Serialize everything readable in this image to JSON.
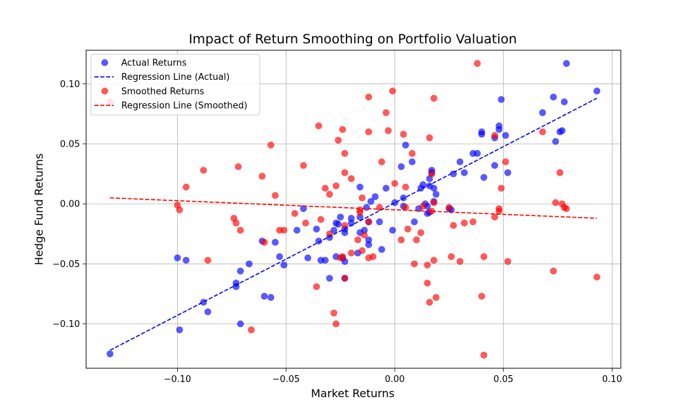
{
  "chart_data": {
    "type": "scatter",
    "title": "Impact of Return Smoothing on Portfolio Valuation",
    "xlabel": "Market Returns",
    "ylabel": "Hedge Fund Returns",
    "xlim": [
      -0.142,
      0.104
    ],
    "ylim": [
      -0.137,
      0.128
    ],
    "xticks": [
      "-0.10",
      "-0.05",
      "0.00",
      "0.05",
      "0.10"
    ],
    "yticks": [
      "-0.10",
      "-0.05",
      "0.00",
      "0.05",
      "0.10"
    ],
    "grid": true,
    "legend": {
      "position": "top-left",
      "entries": [
        "Actual Returns",
        "Regression Line (Actual)",
        "Smoothed Returns",
        "Regression Line (Smoothed)"
      ]
    },
    "colors": {
      "actual": "#0000ff",
      "smoothed": "#ff0000"
    },
    "series": [
      {
        "name": "Actual Returns",
        "kind": "scatter",
        "points": [
          [
            -0.131,
            -0.125
          ],
          [
            -0.099,
            -0.105
          ],
          [
            -0.1,
            -0.045
          ],
          [
            -0.096,
            -0.047
          ],
          [
            -0.088,
            -0.082
          ],
          [
            -0.086,
            -0.09
          ],
          [
            -0.073,
            -0.066
          ],
          [
            -0.073,
            -0.069
          ],
          [
            -0.071,
            -0.1
          ],
          [
            -0.071,
            -0.056
          ],
          [
            -0.067,
            -0.05
          ],
          [
            -0.061,
            -0.031
          ],
          [
            -0.06,
            -0.077
          ],
          [
            -0.057,
            -0.078
          ],
          [
            -0.055,
            -0.032
          ],
          [
            -0.053,
            -0.044
          ],
          [
            -0.051,
            -0.051
          ],
          [
            -0.045,
            -0.022
          ],
          [
            -0.042,
            -0.004
          ],
          [
            -0.04,
            -0.045
          ],
          [
            -0.036,
            -0.021
          ],
          [
            -0.035,
            -0.031
          ],
          [
            -0.034,
            -0.047
          ],
          [
            -0.032,
            -0.047
          ],
          [
            -0.03,
            -0.028
          ],
          [
            -0.03,
            -0.062
          ],
          [
            -0.028,
            -0.022
          ],
          [
            -0.027,
            -0.016
          ],
          [
            -0.027,
            -0.044
          ],
          [
            -0.026,
            -0.017
          ],
          [
            -0.025,
            -0.011
          ],
          [
            -0.024,
            -0.045
          ],
          [
            -0.023,
            -0.048
          ],
          [
            -0.023,
            -0.021
          ],
          [
            -0.023,
            -0.024
          ],
          [
            -0.023,
            -0.062
          ],
          [
            -0.02,
            -0.012
          ],
          [
            -0.02,
            -0.016
          ],
          [
            -0.017,
            -0.041
          ],
          [
            -0.016,
            0.014
          ],
          [
            -0.016,
            -0.011
          ],
          [
            -0.016,
            -0.024
          ],
          [
            -0.014,
            -0.022
          ],
          [
            -0.013,
            -0.003
          ],
          [
            -0.012,
            -0.03
          ],
          [
            -0.012,
            -0.015
          ],
          [
            -0.012,
            -0.034
          ],
          [
            -0.011,
            0.002
          ],
          [
            -0.009,
            0.006
          ],
          [
            -0.007,
            -0.015
          ],
          [
            -0.006,
            -0.038
          ],
          [
            -0.004,
            0.013
          ],
          [
            -0.001,
            -0.022
          ],
          [
            0.0,
            0.001
          ],
          [
            0.003,
            0.031
          ],
          [
            0.004,
            0.005
          ],
          [
            0.004,
            -0.002
          ],
          [
            0.005,
            0.049
          ],
          [
            0.008,
            0.035
          ],
          [
            0.009,
            -0.015
          ],
          [
            0.011,
            -0.004
          ],
          [
            0.012,
            0.013
          ],
          [
            0.013,
            0.016
          ],
          [
            0.014,
            0.0
          ],
          [
            0.015,
            -0.002
          ],
          [
            0.015,
            -0.008
          ],
          [
            0.016,
            0.021
          ],
          [
            0.016,
            -0.007
          ],
          [
            0.016,
            0.015
          ],
          [
            0.017,
            0.028
          ],
          [
            0.017,
            0.026
          ],
          [
            0.018,
            0.013
          ],
          [
            0.018,
            0.002
          ],
          [
            0.019,
            0.008
          ],
          [
            0.025,
            -0.004
          ],
          [
            0.026,
            -0.005
          ],
          [
            0.027,
            0.025
          ],
          [
            0.03,
            0.035
          ],
          [
            0.032,
            0.026
          ],
          [
            0.036,
            0.042
          ],
          [
            0.038,
            0.042
          ],
          [
            0.04,
            0.058
          ],
          [
            0.04,
            0.06
          ],
          [
            0.041,
            0.022
          ],
          [
            0.046,
            0.032
          ],
          [
            0.046,
            0.055
          ],
          [
            0.048,
            0.062
          ],
          [
            0.048,
            0.065
          ],
          [
            0.049,
            0.087
          ],
          [
            0.051,
            0.057
          ],
          [
            0.052,
            0.026
          ],
          [
            0.068,
            0.076
          ],
          [
            0.073,
            0.089
          ],
          [
            0.074,
            0.052
          ],
          [
            0.076,
            0.06
          ],
          [
            0.077,
            0.061
          ],
          [
            0.078,
            0.085
          ],
          [
            0.079,
            0.117
          ],
          [
            0.093,
            0.094
          ]
        ]
      },
      {
        "name": "Regression Line (Actual)",
        "kind": "line",
        "points": [
          [
            -0.131,
            -0.122
          ],
          [
            0.093,
            0.088
          ]
        ]
      },
      {
        "name": "Smoothed Returns",
        "kind": "scatter",
        "points": [
          [
            -0.131,
            0.085
          ],
          [
            -0.1,
            -0.001
          ],
          [
            -0.099,
            -0.005
          ],
          [
            -0.096,
            0.014
          ],
          [
            -0.088,
            0.028
          ],
          [
            -0.086,
            -0.047
          ],
          [
            -0.074,
            -0.012
          ],
          [
            -0.073,
            -0.016
          ],
          [
            -0.072,
            0.031
          ],
          [
            -0.071,
            -0.022
          ],
          [
            -0.066,
            -0.105
          ],
          [
            -0.061,
            0.023
          ],
          [
            -0.06,
            -0.032
          ],
          [
            -0.057,
            0.049
          ],
          [
            -0.055,
            0.007
          ],
          [
            -0.053,
            -0.022
          ],
          [
            -0.051,
            -0.022
          ],
          [
            -0.046,
            -0.008
          ],
          [
            -0.042,
            0.032
          ],
          [
            -0.041,
            -0.016
          ],
          [
            -0.036,
            -0.069
          ],
          [
            -0.035,
            0.065
          ],
          [
            -0.034,
            -0.013
          ],
          [
            -0.032,
            0.013
          ],
          [
            -0.03,
            -0.025
          ],
          [
            -0.03,
            0.008
          ],
          [
            -0.028,
            -0.091
          ],
          [
            -0.027,
            -0.1
          ],
          [
            -0.027,
            0.015
          ],
          [
            -0.026,
            0.053
          ],
          [
            -0.025,
            -0.045
          ],
          [
            -0.024,
            0.062
          ],
          [
            -0.024,
            -0.044
          ],
          [
            -0.023,
            0.042
          ],
          [
            -0.023,
            0.026
          ],
          [
            -0.023,
            -0.018
          ],
          [
            -0.023,
            -0.062
          ],
          [
            -0.02,
            -0.041
          ],
          [
            -0.02,
            0.021
          ],
          [
            -0.017,
            -0.03
          ],
          [
            -0.016,
            -0.007
          ],
          [
            -0.016,
            -0.005
          ],
          [
            -0.015,
            0.005
          ],
          [
            -0.015,
            -0.039
          ],
          [
            -0.014,
            -0.026
          ],
          [
            -0.012,
            0.089
          ],
          [
            -0.012,
            0.06
          ],
          [
            -0.012,
            -0.045
          ],
          [
            -0.012,
            -0.015
          ],
          [
            -0.01,
            -0.044
          ],
          [
            -0.007,
            -0.003
          ],
          [
            -0.006,
            0.035
          ],
          [
            -0.004,
            0.076
          ],
          [
            -0.003,
            0.061
          ],
          [
            -0.001,
            0.094
          ],
          [
            0.0,
            0.017
          ],
          [
            0.003,
            -0.03
          ],
          [
            0.004,
            0.058
          ],
          [
            0.005,
            -0.003
          ],
          [
            0.005,
            0.014
          ],
          [
            0.006,
            -0.021
          ],
          [
            0.008,
            0.042
          ],
          [
            0.009,
            -0.05
          ],
          [
            0.01,
            -0.03
          ],
          [
            0.012,
            -0.024
          ],
          [
            0.013,
            -0.002
          ],
          [
            0.015,
            -0.066
          ],
          [
            0.015,
            -0.051
          ],
          [
            0.016,
            0.055
          ],
          [
            0.016,
            -0.082
          ],
          [
            0.017,
            0.025
          ],
          [
            0.017,
            -0.006
          ],
          [
            0.018,
            0.088
          ],
          [
            0.018,
            0.001
          ],
          [
            0.018,
            -0.047
          ],
          [
            0.019,
            -0.078
          ],
          [
            0.025,
            -0.003
          ],
          [
            0.026,
            -0.044
          ],
          [
            0.027,
            -0.018
          ],
          [
            0.03,
            -0.048
          ],
          [
            0.032,
            -0.016
          ],
          [
            0.036,
            -0.015
          ],
          [
            0.038,
            0.117
          ],
          [
            0.04,
            -0.077
          ],
          [
            0.041,
            -0.044
          ],
          [
            0.041,
            -0.126
          ],
          [
            0.046,
            -0.011
          ],
          [
            0.046,
            0.057
          ],
          [
            0.048,
            -0.004
          ],
          [
            0.048,
            -0.006
          ],
          [
            0.049,
            0.013
          ],
          [
            0.051,
            0.035
          ],
          [
            0.052,
            -0.048
          ],
          [
            0.068,
            0.06
          ],
          [
            0.073,
            -0.056
          ],
          [
            0.074,
            0.001
          ],
          [
            0.076,
            0.026
          ],
          [
            0.077,
            0.0
          ],
          [
            0.078,
            -0.003
          ],
          [
            0.079,
            -0.004
          ],
          [
            0.093,
            -0.061
          ]
        ]
      },
      {
        "name": "Regression Line (Smoothed)",
        "kind": "line",
        "points": [
          [
            -0.131,
            0.005
          ],
          [
            0.093,
            -0.012
          ]
        ]
      }
    ]
  }
}
